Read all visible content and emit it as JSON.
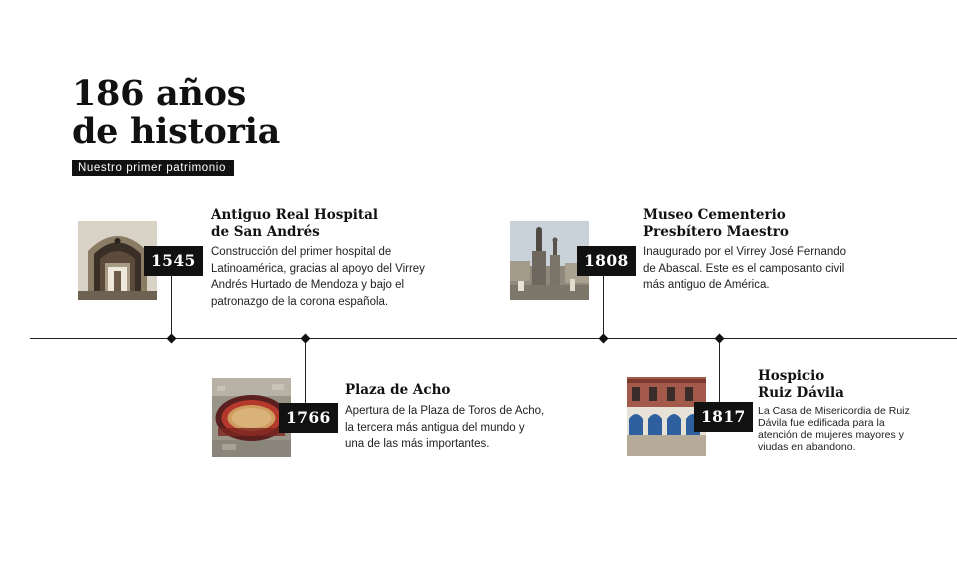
{
  "header": {
    "title_line1": "186 años",
    "title_line2": "de historia",
    "subtitle": "Nuestro primer patrimonio"
  },
  "events": [
    {
      "year": "1545",
      "title_lines": [
        "Antiguo Real Hospital",
        "de San Andrés"
      ],
      "description_lines": [
        "Construcción del primer hospital de",
        "Latinoamérica, gracias al apoyo del Virrey",
        "Andrés Hurtado de Mendoza y bajo el",
        "patronazgo de la corona española."
      ],
      "image": "ornate-arched-doorway-photo"
    },
    {
      "year": "1766",
      "title_lines": [
        "Plaza de Acho"
      ],
      "description_lines": [
        "Apertura de la Plaza de Toros de Acho,",
        "la tercera más antigua del mundo y",
        "una de las más importantes."
      ],
      "image": "bullring-aerial-photo"
    },
    {
      "year": "1808",
      "title_lines": [
        "Museo Cementerio",
        "Presbítero Maestro"
      ],
      "description_lines": [
        "Inaugurado por el Virrey José Fernando",
        "de Abascal. Este es el camposanto civil",
        "más antiguo de América."
      ],
      "image": "cemetery-statues-photo"
    },
    {
      "year": "1817",
      "title_lines": [
        "Hospicio",
        "Ruiz Dávila"
      ],
      "description_lines": [
        "La Casa de Misericordia de Ruiz",
        "Dávila fue edificada para la",
        "atención de mujeres mayores y",
        "viudas en abandono."
      ],
      "image": "colonial-courtyard-photo"
    }
  ],
  "colors": {
    "text": "#111111",
    "badge_background": "#111111",
    "badge_text": "#ffffff",
    "timeline": "#222222"
  }
}
